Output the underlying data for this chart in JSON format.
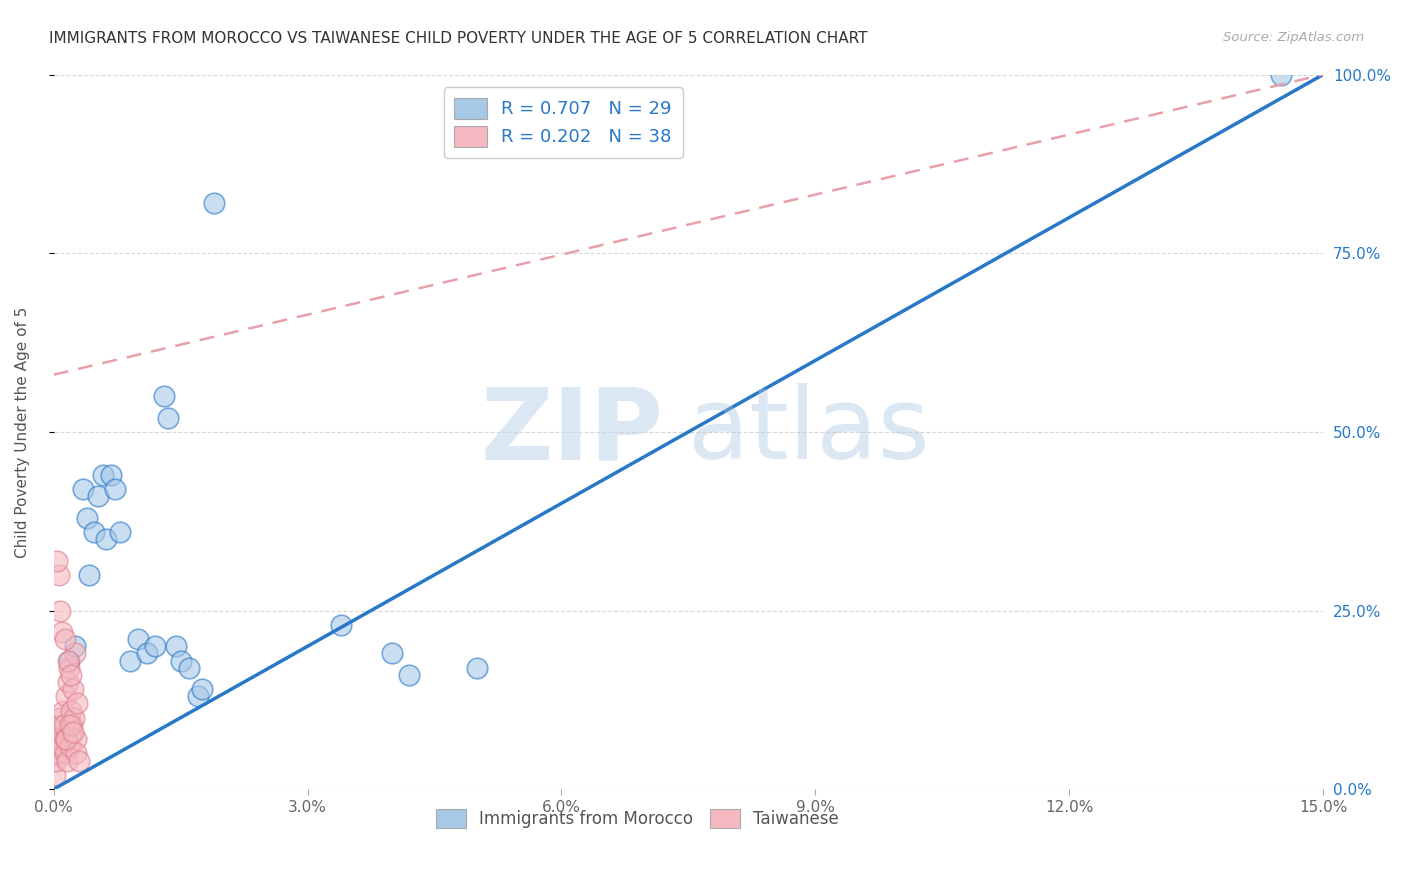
{
  "title": "IMMIGRANTS FROM MOROCCO VS TAIWANESE CHILD POVERTY UNDER THE AGE OF 5 CORRELATION CHART",
  "source": "Source: ZipAtlas.com",
  "xlabel_tick_vals": [
    0.0,
    3.0,
    6.0,
    9.0,
    12.0,
    15.0
  ],
  "ylabel": "Child Poverty Under the Age of 5",
  "ylabel_tick_vals": [
    0.0,
    25.0,
    50.0,
    75.0,
    100.0
  ],
  "xlim": [
    0.0,
    15.0
  ],
  "ylim": [
    0.0,
    100.0
  ],
  "legend1_label_r": "R = 0.707",
  "legend1_label_n": "N = 29",
  "legend2_label_r": "R = 0.202",
  "legend2_label_n": "N = 38",
  "legend_blue_color": "#a8c8e8",
  "legend_pink_color": "#f4b8c0",
  "blue_line_color": "#2878c8",
  "pink_line_color": "#e8a0a8",
  "watermark_zip": "ZIP",
  "watermark_atlas": "atlas",
  "background_color": "#ffffff",
  "grid_color": "#d8d8d8",
  "title_color": "#333333",
  "source_color": "#aaaaaa",
  "blue_scatter": [
    [
      0.18,
      18.0
    ],
    [
      0.25,
      20.0
    ],
    [
      0.35,
      42.0
    ],
    [
      0.4,
      38.0
    ],
    [
      0.42,
      30.0
    ],
    [
      0.48,
      36.0
    ],
    [
      0.52,
      41.0
    ],
    [
      0.58,
      44.0
    ],
    [
      0.62,
      35.0
    ],
    [
      0.68,
      44.0
    ],
    [
      0.72,
      42.0
    ],
    [
      0.78,
      36.0
    ],
    [
      0.9,
      18.0
    ],
    [
      1.0,
      21.0
    ],
    [
      1.1,
      19.0
    ],
    [
      1.2,
      20.0
    ],
    [
      1.3,
      55.0
    ],
    [
      1.35,
      52.0
    ],
    [
      1.45,
      20.0
    ],
    [
      1.5,
      18.0
    ],
    [
      1.6,
      17.0
    ],
    [
      1.7,
      13.0
    ],
    [
      1.75,
      14.0
    ],
    [
      1.9,
      82.0
    ],
    [
      3.4,
      23.0
    ],
    [
      4.0,
      19.0
    ],
    [
      4.2,
      16.0
    ],
    [
      5.0,
      17.0
    ],
    [
      14.5,
      100.0
    ]
  ],
  "pink_scatter": [
    [
      0.02,
      2.0
    ],
    [
      0.03,
      4.0
    ],
    [
      0.04,
      6.0
    ],
    [
      0.05,
      5.0
    ],
    [
      0.06,
      8.0
    ],
    [
      0.07,
      10.0
    ],
    [
      0.08,
      7.0
    ],
    [
      0.09,
      9.0
    ],
    [
      0.1,
      6.0
    ],
    [
      0.11,
      11.0
    ],
    [
      0.12,
      9.0
    ],
    [
      0.13,
      5.0
    ],
    [
      0.14,
      7.0
    ],
    [
      0.15,
      13.0
    ],
    [
      0.16,
      4.0
    ],
    [
      0.17,
      15.0
    ],
    [
      0.18,
      17.0
    ],
    [
      0.19,
      6.0
    ],
    [
      0.2,
      8.0
    ],
    [
      0.21,
      11.0
    ],
    [
      0.22,
      9.0
    ],
    [
      0.23,
      14.0
    ],
    [
      0.24,
      10.0
    ],
    [
      0.25,
      19.0
    ],
    [
      0.26,
      7.0
    ],
    [
      0.27,
      5.0
    ],
    [
      0.28,
      12.0
    ],
    [
      0.3,
      4.0
    ],
    [
      0.06,
      30.0
    ],
    [
      0.1,
      22.0
    ],
    [
      0.13,
      21.0
    ],
    [
      0.15,
      7.0
    ],
    [
      0.17,
      18.0
    ],
    [
      0.19,
      9.0
    ],
    [
      0.21,
      16.0
    ],
    [
      0.23,
      8.0
    ],
    [
      0.04,
      32.0
    ],
    [
      0.08,
      25.0
    ]
  ],
  "blue_line_x": [
    0.0,
    15.0
  ],
  "blue_line_y": [
    0.0,
    100.0
  ],
  "pink_line_x": [
    0.0,
    15.0
  ],
  "pink_line_y": [
    58.0,
    100.0
  ]
}
